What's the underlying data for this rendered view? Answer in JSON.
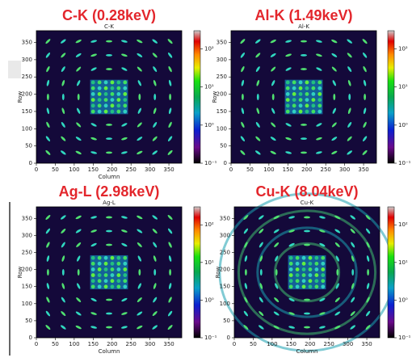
{
  "chart_data": [
    {
      "type": "heatmap",
      "title": "C-K (0.28keV)",
      "subtitle": "C-K",
      "xlabel": "Column",
      "ylabel": "Row",
      "xlim": [
        0,
        384
      ],
      "xticks": [
        0,
        50,
        100,
        150,
        200,
        250,
        300,
        350
      ],
      "ylim": [
        0,
        384
      ],
      "yticks": [
        0,
        50,
        100,
        150,
        200,
        250,
        300,
        350
      ],
      "clim": [
        0.1,
        300
      ],
      "log_colorbar": true,
      "cticks": [
        {
          "value": 0.1,
          "label": "10⁻¹"
        },
        {
          "value": 1,
          "label": "10⁰"
        },
        {
          "value": 10,
          "label": "10¹"
        },
        {
          "value": 100,
          "label": "10²"
        }
      ]
    },
    {
      "type": "heatmap",
      "title": "Al-K (1.49keV)",
      "subtitle": "Al-K",
      "ylabel": "Row",
      "xlim": [
        0,
        384
      ],
      "xticks": [
        0,
        50,
        100,
        150,
        200,
        250,
        300,
        350
      ],
      "ylim": [
        0,
        384
      ],
      "yticks": [
        0,
        50,
        100,
        150,
        200,
        250,
        300,
        350
      ],
      "clim": [
        0.1,
        300
      ],
      "log_colorbar": true,
      "cticks": [
        {
          "value": 0.1,
          "label": "10⁻¹"
        },
        {
          "value": 1,
          "label": "10⁰"
        },
        {
          "value": 10,
          "label": "10¹"
        },
        {
          "value": 100,
          "label": "10²"
        }
      ]
    },
    {
      "type": "heatmap",
      "title": "Ag-L (2.98keV)",
      "subtitle": "Ag-L",
      "xlabel": "Column",
      "ylabel": "Row",
      "xlim": [
        0,
        384
      ],
      "xticks": [
        0,
        50,
        100,
        150,
        200,
        250,
        300,
        350
      ],
      "ylim": [
        0,
        384
      ],
      "yticks": [
        0,
        50,
        100,
        150,
        200,
        250,
        300,
        350
      ],
      "clim": [
        0.1,
        300
      ],
      "log_colorbar": true,
      "cticks": [
        {
          "value": 0.1,
          "label": "10⁻¹"
        },
        {
          "value": 1,
          "label": "10⁰"
        },
        {
          "value": 10,
          "label": "10¹"
        },
        {
          "value": 100,
          "label": "10²"
        }
      ]
    },
    {
      "type": "heatmap",
      "title": "Cu-K (8.04keV)",
      "subtitle": "Cu-K",
      "xlabel": "Column",
      "ylabel": "Row",
      "xlim": [
        0,
        384
      ],
      "xticks": [
        0,
        50,
        100,
        150,
        200,
        250,
        300,
        350
      ],
      "ylim": [
        0,
        384
      ],
      "yticks": [
        0,
        50,
        100,
        150,
        200,
        250,
        300,
        350
      ],
      "clim": [
        0.1,
        300
      ],
      "log_colorbar": true,
      "rings": true,
      "cticks": [
        {
          "value": 0.1,
          "label": "10⁻¹"
        },
        {
          "value": 1,
          "label": "10⁰"
        },
        {
          "value": 10,
          "label": "10¹"
        },
        {
          "value": 100,
          "label": "10²"
        }
      ]
    }
  ]
}
